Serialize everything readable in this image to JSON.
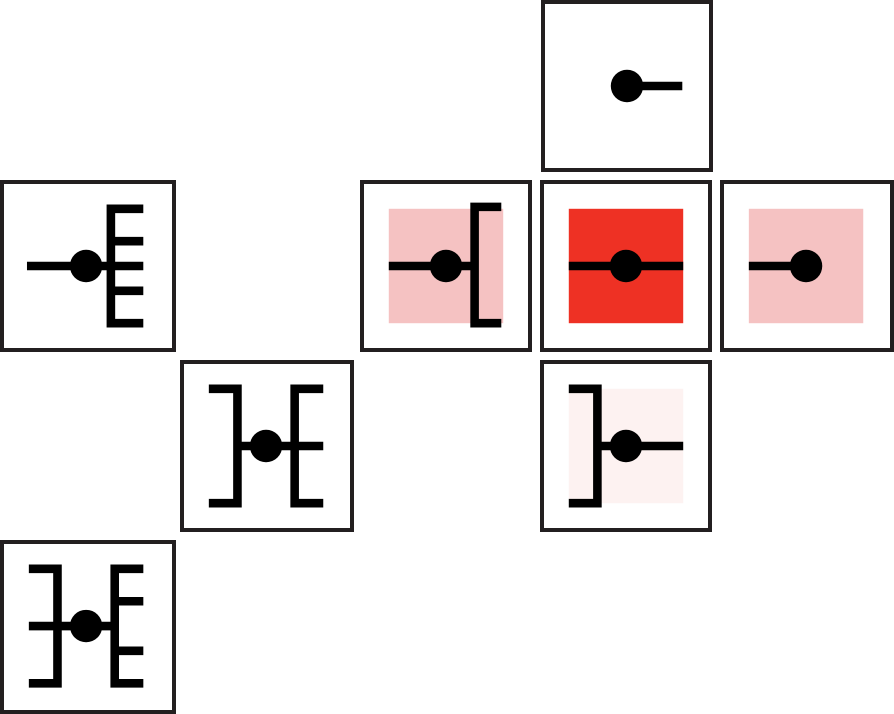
{
  "colors": {
    "border": "#231f20",
    "glyph": "#000000",
    "highlight_strong": "#ee3124",
    "highlight_medium": "#f5c2c2",
    "highlight_light": "#fdf2f1"
  },
  "tiles": [
    {
      "id": "top",
      "highlight": "none",
      "glyph": "dot-with-right-stub"
    },
    {
      "id": "left-a",
      "highlight": "none",
      "glyph": "left-stub-dot-e-bracket"
    },
    {
      "id": "mid-left",
      "highlight": "medium",
      "glyph": "left-stub-dot-open-bracket"
    },
    {
      "id": "center",
      "highlight": "strong",
      "glyph": "through-line-dot"
    },
    {
      "id": "right",
      "highlight": "medium",
      "glyph": "left-stub-dot"
    },
    {
      "id": "left-b",
      "highlight": "none",
      "glyph": "close-bracket-dot-e-bracket"
    },
    {
      "id": "below",
      "highlight": "light",
      "glyph": "close-bracket-dot-right-stub"
    },
    {
      "id": "left-c",
      "highlight": "none",
      "glyph": "double-bracket-dot-e-bracket"
    }
  ]
}
